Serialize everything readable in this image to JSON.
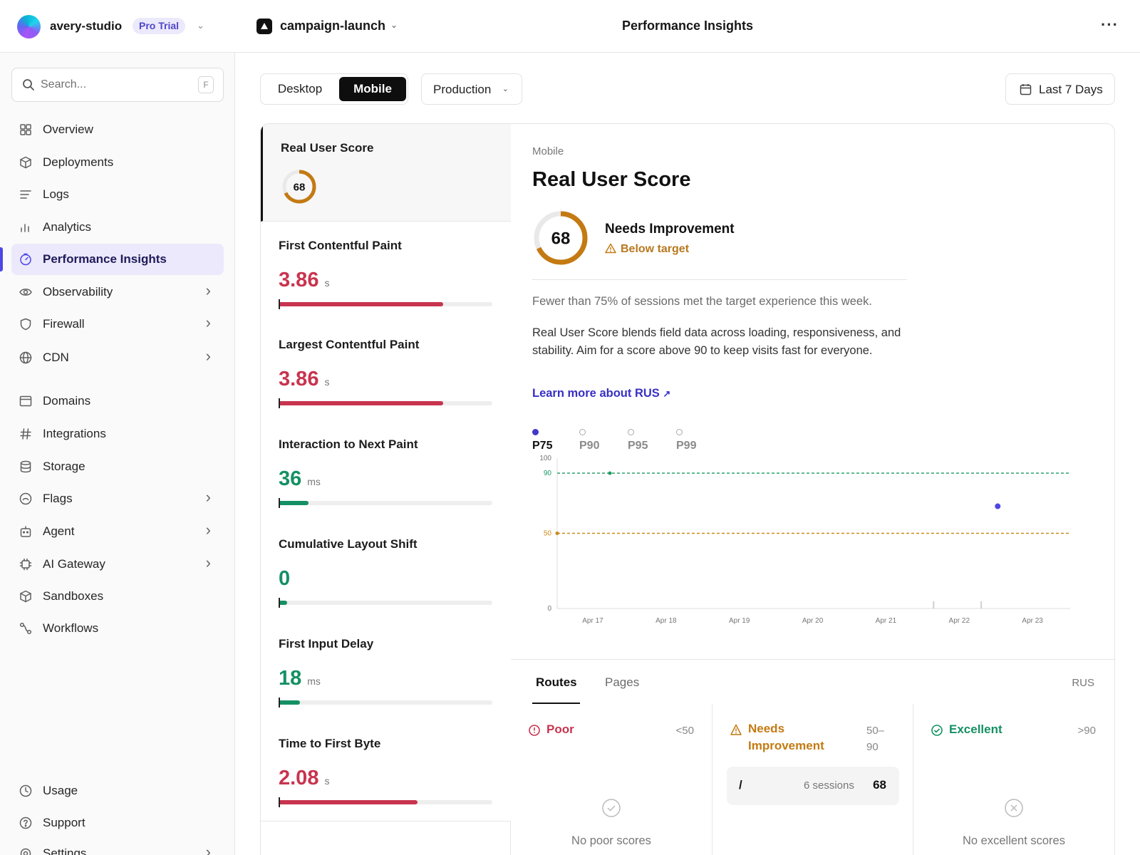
{
  "team": {
    "name": "avery-studio",
    "plan": "Pro Trial"
  },
  "search": {
    "placeholder": "Search...",
    "shortcut": "F"
  },
  "sidebar": {
    "items": [
      {
        "label": "Overview",
        "icon": "grid-icon"
      },
      {
        "label": "Deployments",
        "icon": "cube-icon"
      },
      {
        "label": "Logs",
        "icon": "lines-icon"
      },
      {
        "label": "Analytics",
        "icon": "bar-chart-icon"
      },
      {
        "label": "Performance Insights",
        "icon": "gauge-icon",
        "active": true
      },
      {
        "label": "Observability",
        "icon": "eye-icon",
        "has_children": true
      },
      {
        "label": "Firewall",
        "icon": "shield-icon",
        "has_children": true
      },
      {
        "label": "CDN",
        "icon": "globe-icon",
        "has_children": true
      },
      {
        "label": "Domains",
        "icon": "browser-icon"
      },
      {
        "label": "Integrations",
        "icon": "hash-icon"
      },
      {
        "label": "Storage",
        "icon": "database-icon"
      },
      {
        "label": "Flags",
        "icon": "toggle-icon",
        "has_children": true
      },
      {
        "label": "Agent",
        "icon": "robot-icon",
        "has_children": true
      },
      {
        "label": "AI Gateway",
        "icon": "chip-icon",
        "has_children": true
      },
      {
        "label": "Sandboxes",
        "icon": "box-icon"
      },
      {
        "label": "Workflows",
        "icon": "workflow-icon"
      }
    ],
    "footer": [
      {
        "label": "Usage",
        "icon": "clock-icon"
      },
      {
        "label": "Support",
        "icon": "help-icon"
      },
      {
        "label": "Settings",
        "icon": "gear-icon",
        "has_children": true
      }
    ]
  },
  "header": {
    "project": "campaign-launch",
    "title": "Performance Insights"
  },
  "controls": {
    "device_options": [
      "Desktop",
      "Mobile"
    ],
    "device_selected": "Mobile",
    "environment": "Production",
    "range": "Last 7 Days"
  },
  "metrics": [
    {
      "name": "Real User Score",
      "value": "68",
      "unit": "",
      "ring": true,
      "progress": 0.68,
      "status_color": "#c47a12"
    },
    {
      "name": "First Contentful Paint",
      "value": "3.86",
      "unit": "s",
      "progress": 0.77,
      "status_color": "#c8344f"
    },
    {
      "name": "Largest Contentful Paint",
      "value": "3.86",
      "unit": "s",
      "progress": 0.77,
      "status_color": "#c8344f"
    },
    {
      "name": "Interaction to Next Paint",
      "value": "36",
      "unit": "ms",
      "progress": 0.14,
      "status_color": "#159064"
    },
    {
      "name": "Cumulative Layout Shift",
      "value": "0",
      "unit": "",
      "progress": 0.04,
      "status_color": "#159064"
    },
    {
      "name": "First Input Delay",
      "value": "18",
      "unit": "ms",
      "progress": 0.1,
      "status_color": "#159064"
    },
    {
      "name": "Time to First Byte",
      "value": "2.08",
      "unit": "s",
      "progress": 0.65,
      "status_color": "#c8344f"
    }
  ],
  "detail": {
    "device": "Mobile",
    "title": "Real User Score",
    "score": "68",
    "score_progress": 0.68,
    "status": "Needs Improvement",
    "warning": "Below target",
    "summary": "Fewer than 75% of sessions met the target experience this week.",
    "description": "Real User Score blends field data across loading, responsiveness, and stability. Aim for a score above 90 to keep visits fast for everyone.",
    "link": "Learn more about RUS",
    "legend": [
      "P75",
      "P90",
      "P95",
      "P99"
    ],
    "legend_active": "P75"
  },
  "chart_data": {
    "type": "scatter",
    "x": [
      "Apr 17",
      "Apr 18",
      "Apr 19",
      "Apr 20",
      "Apr 21",
      "Apr 22",
      "Apr 23"
    ],
    "yticks": [
      0,
      50,
      90,
      100
    ],
    "ylim": [
      0,
      100
    ],
    "series": [
      {
        "name": "P75",
        "points": [
          {
            "x": "Apr 22",
            "y": 68
          }
        ]
      }
    ],
    "thresholds": [
      {
        "value": 90,
        "color": "#1a9a62"
      },
      {
        "value": 50,
        "color": "#c98a1d"
      }
    ],
    "grid": false
  },
  "bottom": {
    "tabs": [
      "Routes",
      "Pages"
    ],
    "active_tab": "Routes",
    "column_label": "RUS",
    "buckets": [
      {
        "label": "Poor",
        "range": "<50",
        "empty": "No poor scores",
        "color": "#c8344f"
      },
      {
        "label": "Needs Improvement",
        "range": "50–90",
        "color": "#c47a12",
        "rows": [
          {
            "route": "/",
            "sessions": "6 sessions",
            "score": "68"
          }
        ]
      },
      {
        "label": "Excellent",
        "range": ">90",
        "empty": "No excellent scores",
        "color": "#159064"
      }
    ]
  },
  "colors": {
    "accent": "#4f46e5",
    "poor": "#c8344f",
    "good": "#159064",
    "warn": "#c47a12"
  }
}
